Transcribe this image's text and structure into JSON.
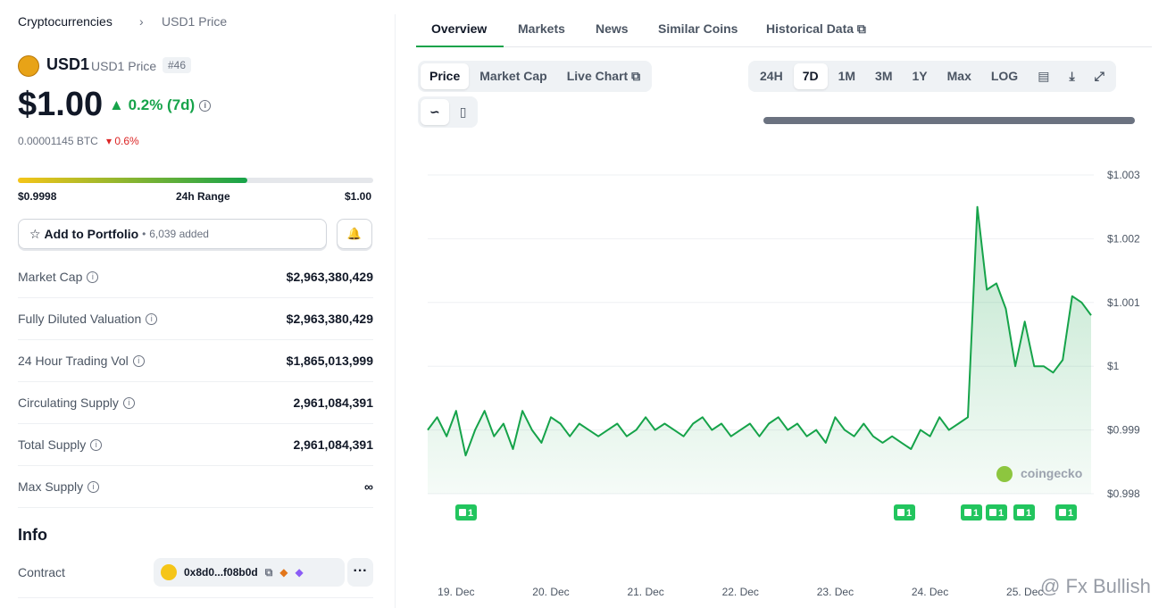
{
  "breadcrumb": [
    "Cryptocurrencies",
    "USD1 Price"
  ],
  "coin": {
    "symbol": "USD1",
    "name": "USD1 Price",
    "rank": "#46",
    "price": "$1.00",
    "change": "0.2% (7d)",
    "btc_price": "0.00001145 BTC",
    "btc_change": "0.6%"
  },
  "range": {
    "low": "$0.9998",
    "label": "24h Range",
    "high": "$1.00"
  },
  "portfolio": {
    "button": "Add to Portfolio",
    "added": "6,039 added"
  },
  "stats": [
    [
      "Market Cap",
      "$2,963,380,429"
    ],
    [
      "Fully Diluted Valuation",
      "$2,963,380,429"
    ],
    [
      "24 Hour Trading Vol",
      "$1,865,013,999"
    ],
    [
      "Circulating Supply",
      "2,961,084,391"
    ],
    [
      "Total Supply",
      "2,961,084,391"
    ],
    [
      "Max Supply",
      "∞"
    ]
  ],
  "info": {
    "title": "Info",
    "contract_label": "Contract",
    "contract": "0x8d0...f08b0d"
  },
  "tabs": [
    "Overview",
    "Markets",
    "News",
    "Similar Coins",
    "Historical Data"
  ],
  "chart_tabs": [
    "Price",
    "Market Cap",
    "Live Chart"
  ],
  "time_ranges": [
    "24H",
    "7D",
    "1M",
    "3M",
    "1Y",
    "Max",
    "LOG"
  ],
  "events": [
    "1",
    "1",
    "1",
    "1",
    "1",
    "1"
  ],
  "brand": "coingecko",
  "watermark": "@ Fx Bullish",
  "chart_data": {
    "type": "line",
    "color": "#16a34a",
    "x": [
      18.7,
      18.8,
      18.9,
      19.0,
      19.1,
      19.2,
      19.3,
      19.4,
      19.5,
      19.6,
      19.7,
      19.8,
      19.9,
      20.0,
      20.1,
      20.2,
      20.3,
      20.4,
      20.5,
      20.6,
      20.7,
      20.8,
      20.9,
      21.0,
      21.1,
      21.2,
      21.3,
      21.4,
      21.5,
      21.6,
      21.7,
      21.8,
      21.9,
      22.0,
      22.1,
      22.2,
      22.3,
      22.4,
      22.5,
      22.6,
      22.7,
      22.8,
      22.9,
      23.0,
      23.1,
      23.2,
      23.3,
      23.4,
      23.5,
      23.6,
      23.7,
      23.8,
      23.9,
      24.0,
      24.1,
      24.2,
      24.3,
      24.4,
      24.5,
      24.6,
      24.7,
      24.8,
      24.9,
      25.0,
      25.1,
      25.2,
      25.3,
      25.4,
      25.5,
      25.6,
      25.7
    ],
    "values": [
      0.999,
      0.9992,
      0.9989,
      0.9993,
      0.9986,
      0.999,
      0.9993,
      0.9989,
      0.9991,
      0.9987,
      0.9993,
      0.999,
      0.9988,
      0.9992,
      0.9991,
      0.9989,
      0.9991,
      0.999,
      0.9989,
      0.999,
      0.9991,
      0.9989,
      0.999,
      0.9992,
      0.999,
      0.9991,
      0.999,
      0.9989,
      0.9991,
      0.9992,
      0.999,
      0.9991,
      0.9989,
      0.999,
      0.9991,
      0.9989,
      0.9991,
      0.9992,
      0.999,
      0.9991,
      0.9989,
      0.999,
      0.9988,
      0.9992,
      0.999,
      0.9989,
      0.9991,
      0.9989,
      0.9988,
      0.9989,
      0.9988,
      0.9987,
      0.999,
      0.9989,
      0.9992,
      0.999,
      0.9991,
      0.9992,
      1.0025,
      1.0012,
      1.0013,
      1.0009,
      1.0,
      1.0007,
      1.0,
      1.0,
      0.9999,
      1.0001,
      1.0011,
      1.001,
      1.0008
    ],
    "xlim": [
      18.7,
      25.7
    ],
    "xticks": [
      {
        "value": 19,
        "label": "19. Dec"
      },
      {
        "value": 20,
        "label": "20. Dec"
      },
      {
        "value": 21,
        "label": "21. Dec"
      },
      {
        "value": 22,
        "label": "22. Dec"
      },
      {
        "value": 23,
        "label": "23. Dec"
      },
      {
        "value": 24,
        "label": "24. Dec"
      },
      {
        "value": 25,
        "label": "25. Dec"
      }
    ],
    "ylim": [
      0.998,
      1.003
    ],
    "yticks": [
      {
        "value": 0.998,
        "label": "$0.998"
      },
      {
        "value": 0.999,
        "label": "$0.999"
      },
      {
        "value": 1,
        "label": "$1"
      },
      {
        "value": 1.001,
        "label": "$1.001"
      },
      {
        "value": 1.002,
        "label": "$1.002"
      },
      {
        "value": 1.003,
        "label": "$1.003"
      }
    ],
    "grid": true
  }
}
